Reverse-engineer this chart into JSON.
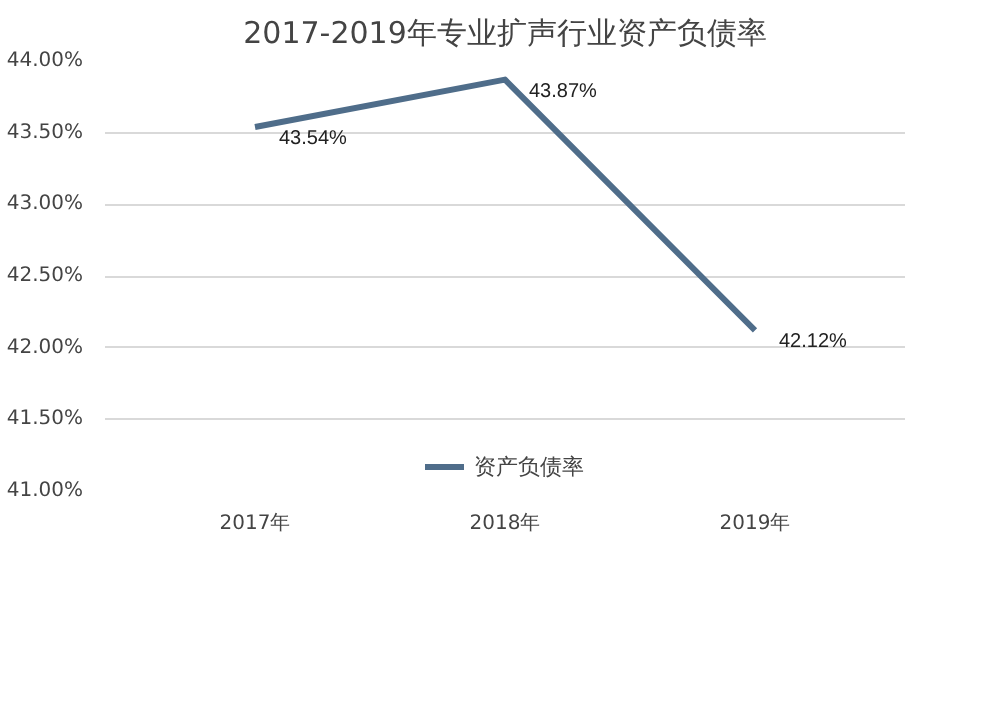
{
  "chart_data": {
    "type": "line",
    "title": "2017-2019年专业扩声行业资产负债率",
    "categories": [
      "2017年",
      "2018年",
      "2019年"
    ],
    "series": [
      {
        "name": "资产负债率",
        "color": "#4f6d8a",
        "values": [
          43.54,
          43.87,
          42.12
        ],
        "value_labels": [
          "43.54%",
          "43.87%",
          "42.12%"
        ]
      }
    ],
    "ylim": [
      41,
      44
    ],
    "yticks": [
      {
        "value": 41,
        "label": "41.00%"
      },
      {
        "value": 41.5,
        "label": "41.50%"
      },
      {
        "value": 42,
        "label": "42.00%"
      },
      {
        "value": 42.5,
        "label": "42.50%"
      },
      {
        "value": 43,
        "label": "43.00%"
      },
      {
        "value": 43.5,
        "label": "43.50%"
      },
      {
        "value": 44,
        "label": "44.00%"
      }
    ],
    "grid": "y",
    "legend": "bottom",
    "line_style": "solid"
  }
}
